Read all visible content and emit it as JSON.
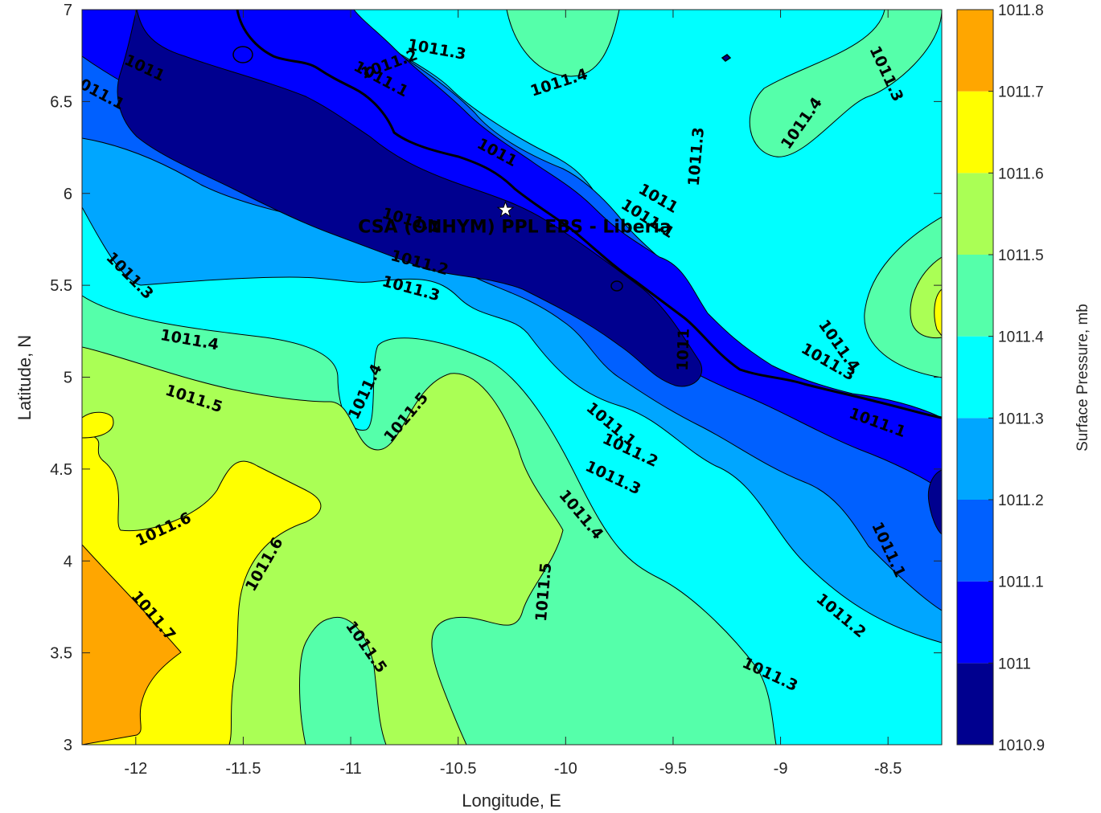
{
  "chart_data": {
    "type": "contourf",
    "xlabel": "Longitude, E",
    "ylabel": "Latitude, N",
    "xlim": [
      -12.25,
      -8.25
    ],
    "ylim": [
      3,
      7
    ],
    "xticks": [
      "-12",
      "-11.5",
      "-11",
      "-10.5",
      "-10",
      "-9.5",
      "-9",
      "-8.5"
    ],
    "xtick_values": [
      -12,
      -11.5,
      -11,
      -10.5,
      -10,
      -9.5,
      -9,
      -8.5
    ],
    "yticks": [
      "3",
      "3.5",
      "4",
      "4.5",
      "5",
      "5.5",
      "6",
      "6.5",
      "7"
    ],
    "ytick_values": [
      3,
      3.5,
      4,
      4.5,
      5,
      5.5,
      6,
      6.5,
      7
    ],
    "colorbar": {
      "label": "Surface Pressure, mb",
      "levels": [
        1010.9,
        1011,
        1011.1,
        1011.2,
        1011.3,
        1011.4,
        1011.5,
        1011.6,
        1011.7,
        1011.8
      ],
      "tick_labels": [
        "1010.9",
        "1011",
        "1011.1",
        "1011.2",
        "1011.3",
        "1011.4",
        "1011.5",
        "1011.6",
        "1011.7",
        "1011.8"
      ],
      "colors": [
        "#00008f",
        "#0000ff",
        "#0060ff",
        "#00a6ff",
        "#00ffff",
        "#55ffaa",
        "#aaff55",
        "#ffff00",
        "#ffa600",
        "#ff5500"
      ]
    },
    "site": {
      "label": "CSA (ONHYM) PPL EBS - Liberia",
      "lon": -10.28,
      "lat": 5.91
    },
    "contour_labels": [
      {
        "text": "1011",
        "lon": -11.96,
        "lat": 6.68,
        "rot": 25
      },
      {
        "text": "1011.1",
        "lon": -12.18,
        "lat": 6.55,
        "rot": 28
      },
      {
        "text": "1011.1",
        "lon": -10.86,
        "lat": 6.62,
        "rot": 28
      },
      {
        "text": "1011.2",
        "lon": -10.82,
        "lat": 6.7,
        "rot": -20
      },
      {
        "text": "1011.3",
        "lon": -10.6,
        "lat": 6.78,
        "rot": 10
      },
      {
        "text": "1011.4",
        "lon": -10.03,
        "lat": 6.6,
        "rot": -18
      },
      {
        "text": "1011.3",
        "lon": -8.51,
        "lat": 6.65,
        "rot": 65
      },
      {
        "text": "1011.4",
        "lon": -8.9,
        "lat": 6.38,
        "rot": -55
      },
      {
        "text": "1011.3",
        "lon": -9.39,
        "lat": 6.2,
        "rot": -85
      },
      {
        "text": "1011",
        "lon": -10.32,
        "lat": 6.22,
        "rot": 28
      },
      {
        "text": "1011",
        "lon": -9.57,
        "lat": 5.97,
        "rot": 30
      },
      {
        "text": "1011.1",
        "lon": -9.62,
        "lat": 5.86,
        "rot": 32
      },
      {
        "text": "1011.1",
        "lon": -10.72,
        "lat": 5.85,
        "rot": 15
      },
      {
        "text": "1011.2",
        "lon": -10.68,
        "lat": 5.62,
        "rot": 15
      },
      {
        "text": "1011.3",
        "lon": -10.72,
        "lat": 5.48,
        "rot": 15
      },
      {
        "text": "1011.3",
        "lon": -12.03,
        "lat": 5.55,
        "rot": 45
      },
      {
        "text": "1011.4",
        "lon": -11.75,
        "lat": 5.2,
        "rot": 10
      },
      {
        "text": "1011.4",
        "lon": -10.93,
        "lat": 4.92,
        "rot": -65
      },
      {
        "text": "1011.5",
        "lon": -11.73,
        "lat": 4.88,
        "rot": 18
      },
      {
        "text": "1011.5",
        "lon": -10.74,
        "lat": 4.78,
        "rot": -50
      },
      {
        "text": "1011",
        "lon": -9.45,
        "lat": 5.15,
        "rot": -88
      },
      {
        "text": "1011.4",
        "lon": -8.73,
        "lat": 5.17,
        "rot": 55
      },
      {
        "text": "1011.3",
        "lon": -8.78,
        "lat": 5.08,
        "rot": 30
      },
      {
        "text": "1011.1",
        "lon": -8.55,
        "lat": 4.75,
        "rot": 20
      },
      {
        "text": "1011.1",
        "lon": -9.79,
        "lat": 4.74,
        "rot": 40
      },
      {
        "text": "1011.2",
        "lon": -9.7,
        "lat": 4.6,
        "rot": 25
      },
      {
        "text": "1011.3",
        "lon": -9.78,
        "lat": 4.45,
        "rot": 25
      },
      {
        "text": "1011.4",
        "lon": -9.93,
        "lat": 4.25,
        "rot": 50
      },
      {
        "text": "1011.6",
        "lon": -11.87,
        "lat": 4.17,
        "rot": -25
      },
      {
        "text": "1011.6",
        "lon": -11.4,
        "lat": 3.98,
        "rot": -60
      },
      {
        "text": "1011.7",
        "lon": -11.92,
        "lat": 3.7,
        "rot": 50
      },
      {
        "text": "1011.5",
        "lon": -10.1,
        "lat": 3.83,
        "rot": -85
      },
      {
        "text": "1011.5",
        "lon": -10.93,
        "lat": 3.53,
        "rot": 55
      },
      {
        "text": "1011.1",
        "lon": -8.5,
        "lat": 4.06,
        "rot": 65
      },
      {
        "text": "1011.2",
        "lon": -8.72,
        "lat": 3.7,
        "rot": 40
      },
      {
        "text": "1011.3",
        "lon": -9.05,
        "lat": 3.38,
        "rot": 25
      }
    ]
  }
}
